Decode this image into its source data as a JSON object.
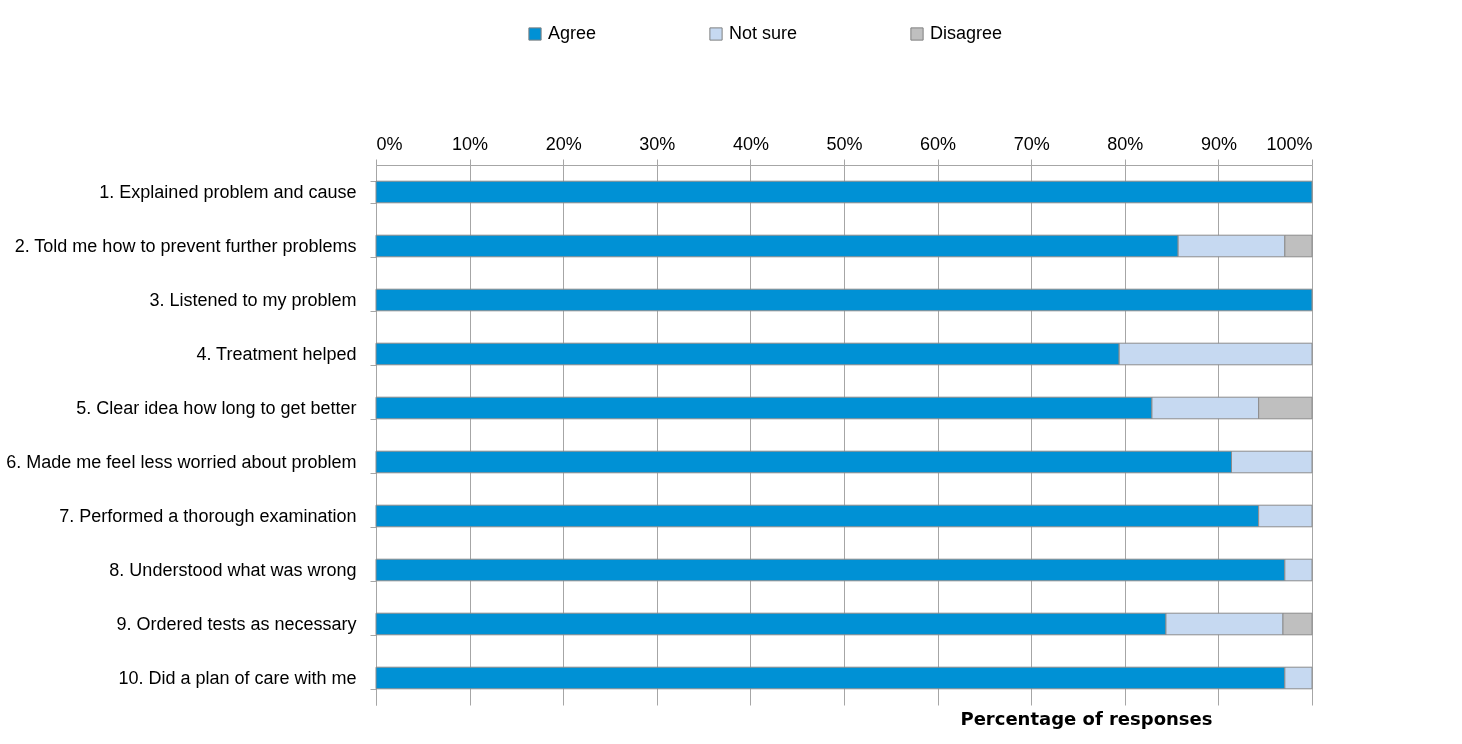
{
  "chart_data": {
    "type": "bar",
    "orientation": "horizontal",
    "stacked": true,
    "categories": [
      "1. Explained problem and cause",
      "2. Told me how to prevent further problems",
      "3. Listened to my problem",
      "4. Treatment helped",
      "5. Clear idea how long to get better",
      "6. Made me feel less worried about problem",
      "7. Performed a thorough examination",
      "8. Understood what was wrong",
      "9. Ordered tests as necessary",
      "10. Did a plan of care with me"
    ],
    "series": [
      {
        "name": "Agree",
        "color": "#0091d5",
        "values": [
          100,
          85.7,
          100,
          79.4,
          82.9,
          91.4,
          94.3,
          97.1,
          84.4,
          97.1
        ]
      },
      {
        "name": "Not sure",
        "color": "#c6d9f1",
        "values": [
          null,
          11.4,
          null,
          20.6,
          11.4,
          8.6,
          5.7,
          2.9,
          12.5,
          2.9
        ]
      },
      {
        "name": "Disagree",
        "color": "#bfbfbf",
        "values": [
          null,
          2.9,
          null,
          null,
          5.7,
          null,
          null,
          null,
          3.1,
          null
        ]
      }
    ],
    "xlim": [
      0,
      100
    ],
    "xticks": [
      {
        "value": 0,
        "label": "0%"
      },
      {
        "value": 10,
        "label": "10%"
      },
      {
        "value": 20,
        "label": "20%"
      },
      {
        "value": 30,
        "label": "30%"
      },
      {
        "value": 40,
        "label": "40%"
      },
      {
        "value": 50,
        "label": "50%"
      },
      {
        "value": 60,
        "label": "60%"
      },
      {
        "value": 70,
        "label": "70%"
      },
      {
        "value": 80,
        "label": "80%"
      },
      {
        "value": 90,
        "label": "90%"
      },
      {
        "value": 100,
        "label": "100%"
      }
    ],
    "xlabel": "Percentage of responses",
    "grid": "x",
    "legend": "top"
  }
}
